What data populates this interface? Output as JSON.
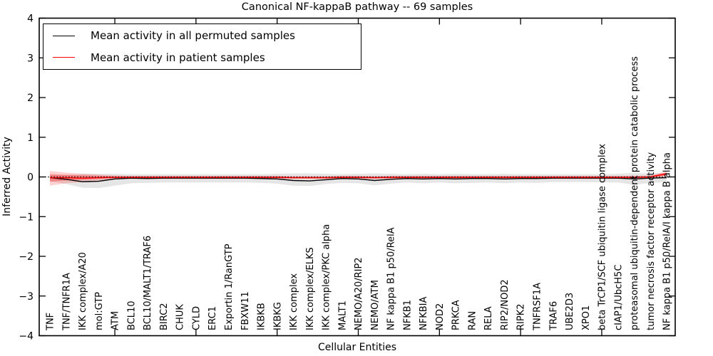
{
  "figure": {
    "title": "Canonical NF-kappaB pathway -- 69 samples",
    "xlabel": "Cellular Entities",
    "ylabel": "Inferred Activity"
  },
  "legend": {
    "entries": [
      {
        "label": "Mean activity in all permuted samples",
        "color": "#000000"
      },
      {
        "label": "Mean activity in patient samples",
        "color": "#ff0000"
      }
    ],
    "position": "upper left"
  },
  "chart_data": {
    "type": "line",
    "title": "Canonical NF-kappaB pathway -- 69 samples",
    "xlabel": "Cellular Entities",
    "ylabel": "Inferred Activity",
    "ylim": [
      -4,
      4
    ],
    "yticks": [
      -4,
      -3,
      -2,
      -1,
      0,
      1,
      2,
      3,
      4
    ],
    "x_tick_indices": [
      4,
      9,
      14,
      19,
      24,
      29,
      34
    ],
    "grid": false,
    "legend_position": "upper left",
    "zero_line": {
      "y": 0,
      "style": "dotted",
      "color": "#000000"
    },
    "categories": [
      "TNF",
      "TNF/TNFR1A",
      "IKK complex/A20",
      "mol:GTP",
      "ATM",
      "BCL10",
      "BCL10/MALT1/TRAF6",
      "BIRC2",
      "CHUK",
      "CYLD",
      "ERC1",
      "Exportin 1/RanGTP",
      "FBXW11",
      "IKBKB",
      "IKBKG",
      "IKK complex",
      "IKK complex/ELKS",
      "IKK complex/PKC alpha",
      "MALT1",
      "NEMO/A20/RIP2",
      "NEMO/ATM",
      "NF kappa B1 p50/RelA",
      "NFKB1",
      "NFKBIA",
      "NOD2",
      "PRKCA",
      "RAN",
      "RELA",
      "RIP2/NOD2",
      "RIPK2",
      "TNFRSF1A",
      "TRAF6",
      "UBE2D3",
      "XPO1",
      "beta TrCP1/SCF ubiquitin ligase complex",
      "cIAP1/UbcH5C",
      "proteasomal ubiquitin-dependent protein catabolic process",
      "tumor necrosis factor receptor activity",
      "NF kappa B1 p50/RelA/I kappa B alpha"
    ],
    "series": [
      {
        "name": "Mean activity in all permuted samples",
        "color": "#000000",
        "width": 1.4,
        "values": [
          -0.02,
          -0.06,
          -0.12,
          -0.11,
          -0.05,
          -0.03,
          -0.04,
          -0.03,
          -0.03,
          -0.03,
          -0.03,
          -0.03,
          -0.03,
          -0.04,
          -0.05,
          -0.09,
          -0.1,
          -0.07,
          -0.04,
          -0.05,
          -0.09,
          -0.06,
          -0.04,
          -0.05,
          -0.04,
          -0.05,
          -0.04,
          -0.04,
          -0.05,
          -0.04,
          -0.04,
          -0.03,
          -0.03,
          -0.03,
          -0.03,
          -0.03,
          -0.05,
          -0.03,
          -0.02
        ]
      },
      {
        "name": "Mean activity in patient samples",
        "color": "#ff0000",
        "width": 1.5,
        "values": [
          -0.02,
          -0.02,
          -0.03,
          -0.02,
          -0.01,
          -0.01,
          -0.01,
          -0.01,
          -0.01,
          -0.01,
          -0.01,
          -0.01,
          -0.01,
          -0.01,
          -0.01,
          -0.02,
          -0.02,
          -0.02,
          -0.01,
          -0.01,
          -0.02,
          -0.01,
          -0.01,
          -0.01,
          -0.01,
          -0.01,
          -0.01,
          -0.01,
          -0.01,
          -0.01,
          -0.01,
          -0.01,
          -0.01,
          -0.01,
          -0.01,
          -0.01,
          -0.01,
          0.0,
          0.08
        ]
      }
    ],
    "bands": [
      {
        "name": "permuted-samples-range",
        "color": "#000000",
        "opacity": 0.1,
        "lo": [
          -0.1,
          -0.18,
          -0.27,
          -0.28,
          -0.22,
          -0.16,
          -0.15,
          -0.14,
          -0.14,
          -0.14,
          -0.14,
          -0.14,
          -0.14,
          -0.15,
          -0.17,
          -0.22,
          -0.23,
          -0.18,
          -0.15,
          -0.16,
          -0.21,
          -0.17,
          -0.14,
          -0.16,
          -0.14,
          -0.16,
          -0.15,
          -0.14,
          -0.16,
          -0.14,
          -0.15,
          -0.13,
          -0.13,
          -0.13,
          -0.14,
          -0.14,
          -0.2,
          -0.15,
          -0.13
        ],
        "hi": [
          0.05,
          0.06,
          0.08,
          0.08,
          0.08,
          0.07,
          0.07,
          0.07,
          0.07,
          0.07,
          0.07,
          0.07,
          0.07,
          0.07,
          0.08,
          0.09,
          0.09,
          0.08,
          0.07,
          0.08,
          0.09,
          0.08,
          0.07,
          0.08,
          0.07,
          0.08,
          0.07,
          0.07,
          0.08,
          0.07,
          0.07,
          0.07,
          0.07,
          0.07,
          0.07,
          0.08,
          0.1,
          0.09,
          0.1
        ]
      },
      {
        "name": "patient-samples-range-outer",
        "color": "#ff0000",
        "opacity": 0.18,
        "lo": [
          -0.22,
          -0.16,
          -0.13,
          -0.09,
          -0.06,
          -0.05,
          -0.05,
          -0.05,
          -0.05,
          -0.05,
          -0.05,
          -0.05,
          -0.05,
          -0.05,
          -0.05,
          -0.05,
          -0.05,
          -0.05,
          -0.05,
          -0.05,
          -0.05,
          -0.05,
          -0.05,
          -0.05,
          -0.05,
          -0.05,
          -0.05,
          -0.05,
          -0.05,
          -0.05,
          -0.05,
          -0.05,
          -0.05,
          -0.05,
          -0.05,
          -0.05,
          -0.05,
          -0.04,
          0.02
        ],
        "hi": [
          0.15,
          0.11,
          0.08,
          0.06,
          0.04,
          0.03,
          0.03,
          0.03,
          0.03,
          0.03,
          0.03,
          0.03,
          0.03,
          0.03,
          0.03,
          0.02,
          0.02,
          0.02,
          0.03,
          0.03,
          0.02,
          0.03,
          0.03,
          0.03,
          0.03,
          0.03,
          0.03,
          0.03,
          0.03,
          0.03,
          0.03,
          0.03,
          0.03,
          0.03,
          0.03,
          0.03,
          0.03,
          0.04,
          0.14
        ]
      },
      {
        "name": "patient-samples-range-inner",
        "color": "#ff0000",
        "opacity": 0.3,
        "lo": [
          -0.12,
          -0.09,
          -0.07,
          -0.05,
          -0.03,
          -0.03,
          -0.03,
          -0.03,
          -0.03,
          -0.03,
          -0.03,
          -0.03,
          -0.03,
          -0.03,
          -0.03,
          -0.03,
          -0.03,
          -0.03,
          -0.03,
          -0.03,
          -0.03,
          -0.03,
          -0.03,
          -0.03,
          -0.03,
          -0.03,
          -0.03,
          -0.03,
          -0.03,
          -0.03,
          -0.03,
          -0.03,
          -0.03,
          -0.03,
          -0.03,
          -0.03,
          -0.03,
          -0.02,
          0.04
        ],
        "hi": [
          0.07,
          0.05,
          0.04,
          0.03,
          0.01,
          0.01,
          0.01,
          0.01,
          0.01,
          0.01,
          0.01,
          0.01,
          0.01,
          0.01,
          0.01,
          0.0,
          0.0,
          0.0,
          0.01,
          0.01,
          0.0,
          0.01,
          0.01,
          0.01,
          0.01,
          0.01,
          0.01,
          0.01,
          0.01,
          0.01,
          0.01,
          0.01,
          0.01,
          0.01,
          0.01,
          0.01,
          0.01,
          0.02,
          0.11
        ]
      }
    ]
  }
}
